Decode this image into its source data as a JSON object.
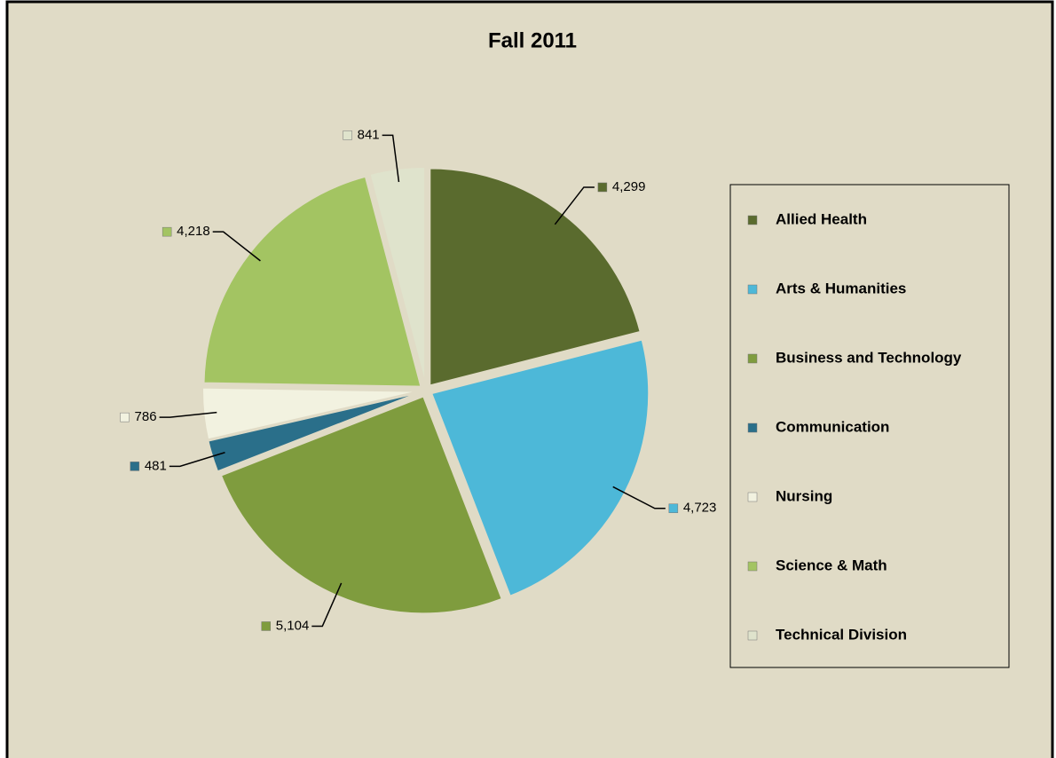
{
  "chart_data": {
    "type": "pie",
    "title": "Fall  2011",
    "categories": [
      "Allied Health",
      "Arts & Humanities",
      "Business and Technology",
      "Communication",
      "Nursing",
      "Science & Math",
      "Technical Division"
    ],
    "values": [
      4299,
      4723,
      5104,
      481,
      786,
      4218,
      841
    ],
    "value_labels": [
      "4,299",
      "4,723",
      "5,104",
      "481",
      "786",
      "4,218",
      "841"
    ],
    "colors": [
      "#5a6b2e",
      "#4db8d8",
      "#7f9c3e",
      "#2a6f8a",
      "#f2f2e0",
      "#a3c462",
      "#dfe3cc"
    ],
    "legend": "right"
  }
}
